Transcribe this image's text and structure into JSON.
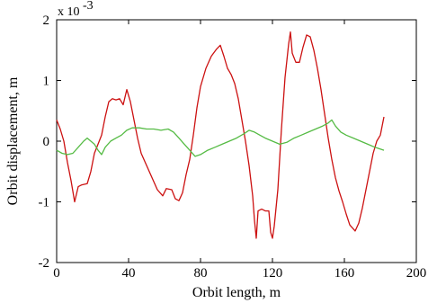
{
  "chart_data": {
    "type": "line",
    "xlabel": "Orbit length, m",
    "ylabel": "Orbit displacement, m",
    "y_multiplier": "x 10",
    "y_multiplier_exp": "-3",
    "xlim": [
      0,
      200
    ],
    "ylim": [
      -2,
      2
    ],
    "xticks": [
      0,
      40,
      80,
      120,
      160,
      200
    ],
    "yticks": [
      2,
      1,
      0,
      -1,
      -2
    ],
    "grid": false,
    "series": [
      {
        "color": "#cc1111",
        "points": [
          [
            0,
            0.35
          ],
          [
            2,
            0.2
          ],
          [
            4,
            0.0
          ],
          [
            6,
            -0.35
          ],
          [
            8,
            -0.65
          ],
          [
            10,
            -1.0
          ],
          [
            12,
            -0.75
          ],
          [
            14,
            -0.72
          ],
          [
            17,
            -0.7
          ],
          [
            19,
            -0.5
          ],
          [
            21,
            -0.2
          ],
          [
            23,
            -0.05
          ],
          [
            25,
            0.1
          ],
          [
            27,
            0.4
          ],
          [
            29,
            0.65
          ],
          [
            31,
            0.7
          ],
          [
            33,
            0.68
          ],
          [
            35,
            0.7
          ],
          [
            37,
            0.6
          ],
          [
            39,
            0.85
          ],
          [
            41,
            0.65
          ],
          [
            43,
            0.35
          ],
          [
            45,
            0.05
          ],
          [
            47,
            -0.2
          ],
          [
            50,
            -0.4
          ],
          [
            53,
            -0.6
          ],
          [
            56,
            -0.8
          ],
          [
            59,
            -0.9
          ],
          [
            61,
            -0.78
          ],
          [
            64,
            -0.8
          ],
          [
            66,
            -0.95
          ],
          [
            68,
            -0.98
          ],
          [
            70,
            -0.85
          ],
          [
            72,
            -0.55
          ],
          [
            74,
            -0.3
          ],
          [
            76,
            0.1
          ],
          [
            78,
            0.55
          ],
          [
            80,
            0.9
          ],
          [
            83,
            1.2
          ],
          [
            86,
            1.4
          ],
          [
            89,
            1.52
          ],
          [
            91,
            1.58
          ],
          [
            93,
            1.4
          ],
          [
            95,
            1.2
          ],
          [
            97,
            1.1
          ],
          [
            99,
            0.95
          ],
          [
            101,
            0.7
          ],
          [
            103,
            0.35
          ],
          [
            105,
            0.0
          ],
          [
            107,
            -0.4
          ],
          [
            109,
            -0.9
          ],
          [
            110,
            -1.3
          ],
          [
            111,
            -1.6
          ],
          [
            112,
            -1.15
          ],
          [
            114,
            -1.12
          ],
          [
            116,
            -1.15
          ],
          [
            118,
            -1.15
          ],
          [
            119,
            -1.5
          ],
          [
            120,
            -1.6
          ],
          [
            121,
            -1.4
          ],
          [
            123,
            -0.8
          ],
          [
            125,
            0.2
          ],
          [
            127,
            1.05
          ],
          [
            129,
            1.6
          ],
          [
            130,
            1.8
          ],
          [
            131,
            1.45
          ],
          [
            133,
            1.3
          ],
          [
            135,
            1.3
          ],
          [
            137,
            1.55
          ],
          [
            139,
            1.75
          ],
          [
            141,
            1.72
          ],
          [
            143,
            1.5
          ],
          [
            145,
            1.2
          ],
          [
            147,
            0.85
          ],
          [
            149,
            0.45
          ],
          [
            151,
            0.05
          ],
          [
            153,
            -0.3
          ],
          [
            155,
            -0.6
          ],
          [
            157,
            -0.82
          ],
          [
            159,
            -1.0
          ],
          [
            161,
            -1.2
          ],
          [
            163,
            -1.38
          ],
          [
            166,
            -1.48
          ],
          [
            168,
            -1.35
          ],
          [
            170,
            -1.1
          ],
          [
            172,
            -0.8
          ],
          [
            174,
            -0.5
          ],
          [
            176,
            -0.2
          ],
          [
            178,
            0.0
          ],
          [
            180,
            0.1
          ],
          [
            182,
            0.4
          ]
        ]
      },
      {
        "color": "#55bb44",
        "points": [
          [
            0,
            -0.15
          ],
          [
            3,
            -0.2
          ],
          [
            6,
            -0.22
          ],
          [
            9,
            -0.2
          ],
          [
            12,
            -0.1
          ],
          [
            15,
            0.0
          ],
          [
            17,
            0.05
          ],
          [
            19,
            0.0
          ],
          [
            21,
            -0.05
          ],
          [
            23,
            -0.15
          ],
          [
            25,
            -0.22
          ],
          [
            27,
            -0.1
          ],
          [
            30,
            0.0
          ],
          [
            33,
            0.05
          ],
          [
            36,
            0.1
          ],
          [
            39,
            0.18
          ],
          [
            42,
            0.22
          ],
          [
            46,
            0.22
          ],
          [
            50,
            0.2
          ],
          [
            54,
            0.2
          ],
          [
            58,
            0.18
          ],
          [
            62,
            0.2
          ],
          [
            65,
            0.15
          ],
          [
            68,
            0.05
          ],
          [
            71,
            -0.05
          ],
          [
            74,
            -0.15
          ],
          [
            77,
            -0.25
          ],
          [
            80,
            -0.22
          ],
          [
            84,
            -0.15
          ],
          [
            88,
            -0.1
          ],
          [
            92,
            -0.05
          ],
          [
            96,
            0.0
          ],
          [
            100,
            0.05
          ],
          [
            104,
            0.12
          ],
          [
            107,
            0.18
          ],
          [
            110,
            0.15
          ],
          [
            113,
            0.1
          ],
          [
            116,
            0.05
          ],
          [
            120,
            0.0
          ],
          [
            124,
            -0.05
          ],
          [
            128,
            -0.02
          ],
          [
            132,
            0.05
          ],
          [
            136,
            0.1
          ],
          [
            140,
            0.15
          ],
          [
            144,
            0.2
          ],
          [
            148,
            0.25
          ],
          [
            151,
            0.3
          ],
          [
            153,
            0.35
          ],
          [
            155,
            0.25
          ],
          [
            158,
            0.15
          ],
          [
            161,
            0.1
          ],
          [
            165,
            0.05
          ],
          [
            169,
            0.0
          ],
          [
            173,
            -0.05
          ],
          [
            177,
            -0.1
          ],
          [
            182,
            -0.15
          ]
        ]
      }
    ]
  }
}
